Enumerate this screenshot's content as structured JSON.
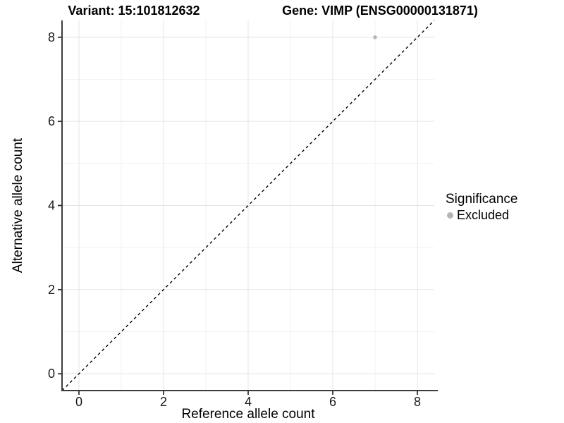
{
  "figure": {
    "background": "#ffffff"
  },
  "chart_data": {
    "type": "scatter",
    "titles": [
      "Variant: 15:101812632",
      "Gene: VIMP (ENSG00000131871)"
    ],
    "xlabel": "Reference allele count",
    "ylabel": "Alternative allele count",
    "xlim": [
      -0.4,
      8.4
    ],
    "ylim": [
      -0.4,
      8.4
    ],
    "xticks": [
      0,
      2,
      4,
      6,
      8
    ],
    "yticks": [
      0,
      2,
      4,
      6,
      8
    ],
    "xticks_minor": [
      1,
      3,
      5,
      7
    ],
    "yticks_minor": [
      1,
      3,
      5,
      7
    ],
    "grid": "major and minor gridlines, white panel background",
    "series": [
      {
        "name": "Excluded",
        "color": "#b5b5b5",
        "points": [
          {
            "x": 7,
            "y": 8
          }
        ]
      }
    ],
    "reference_line": {
      "equation": "y = x",
      "style": "dashed",
      "color": "#000000",
      "from": [
        -0.4,
        -0.4
      ],
      "to": [
        8.4,
        8.4
      ]
    },
    "legend": {
      "title": "Significance",
      "position": "right",
      "entries": [
        {
          "label": "Excluded",
          "color": "#b5b5b5"
        }
      ]
    },
    "style": {
      "grid_major_color": "#e4e4e4",
      "grid_minor_color": "#f1f1f1",
      "axis_line_color": "#3c3c3c",
      "tick_color": "#333333",
      "point_radius": 2.7
    }
  }
}
